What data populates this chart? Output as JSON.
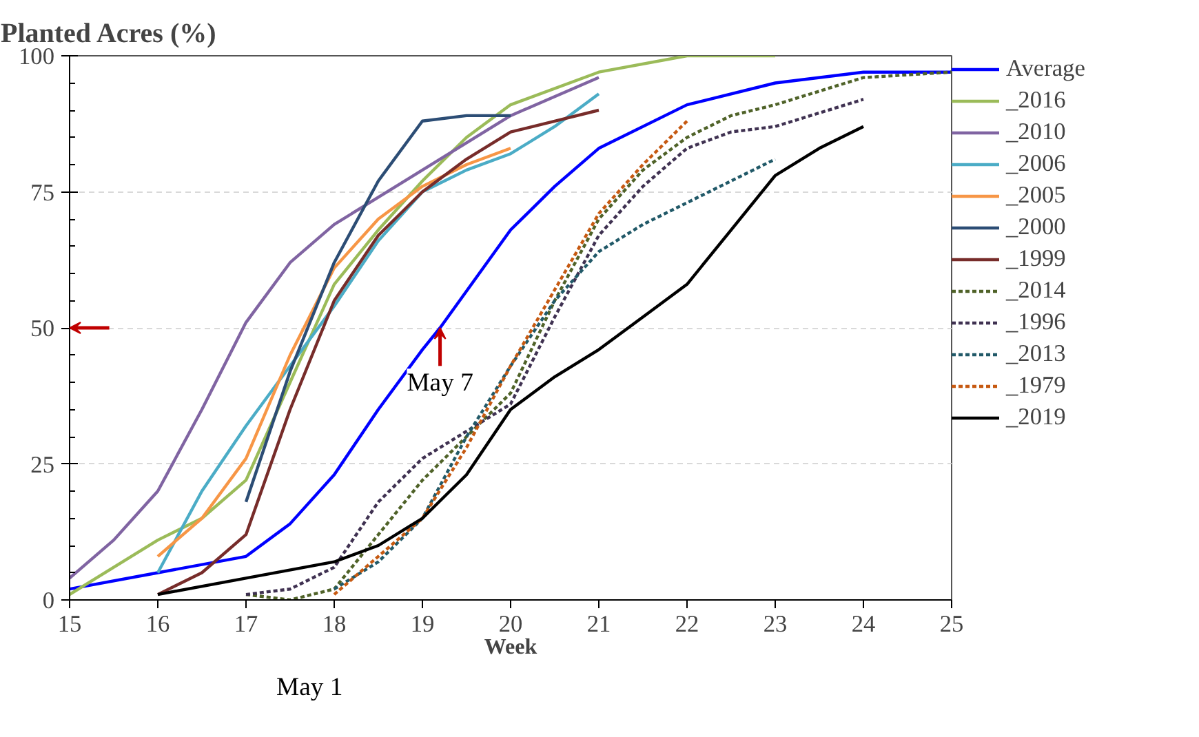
{
  "chart_data": {
    "type": "line",
    "ylabel": "Planted Acres (%)",
    "xlabel": "Week",
    "xlim": [
      15,
      25
    ],
    "xticks": [
      15,
      16,
      17,
      18,
      19,
      20,
      21,
      22,
      23,
      24,
      25
    ],
    "ylim": [
      0,
      100
    ],
    "yticks": [
      0,
      25,
      50,
      75,
      100
    ],
    "grid": "y",
    "legend": "right",
    "marker": "none",
    "annotations": [
      {
        "text": "May 7",
        "x": 19.2,
        "y": 50
      },
      "May 1"
    ],
    "series": [
      {
        "name": "Average",
        "color": "#0000ff",
        "line_style": "solid",
        "x": [
          15,
          16,
          17,
          17.5,
          18,
          18.5,
          19,
          19.2,
          20,
          20.5,
          21,
          22,
          23,
          24,
          25
        ],
        "values": [
          2,
          5,
          8,
          14,
          23,
          35,
          46,
          50,
          68,
          76,
          83,
          91,
          95,
          97,
          97
        ]
      },
      {
        "name": "_2016",
        "color": "#9bbb59",
        "line_style": "solid",
        "x": [
          15,
          16,
          16.5,
          17,
          17.5,
          18,
          18.5,
          19,
          19.5,
          20,
          21,
          22,
          23
        ],
        "values": [
          1,
          11,
          15,
          22,
          40,
          58,
          68,
          77,
          85,
          91,
          97,
          100,
          100
        ]
      },
      {
        "name": "_2010",
        "color": "#8064a2",
        "line_style": "solid",
        "x": [
          15,
          15.5,
          16,
          16.5,
          17,
          17.5,
          18,
          18.5,
          19,
          19.5,
          20,
          21
        ],
        "values": [
          4,
          11,
          20,
          35,
          51,
          62,
          69,
          74,
          79,
          84,
          89,
          96
        ]
      },
      {
        "name": "_2006",
        "color": "#4bacc6",
        "line_style": "solid",
        "x": [
          16,
          16.5,
          17,
          17.5,
          18,
          18.5,
          19,
          19.5,
          20,
          20.5,
          21
        ],
        "values": [
          5,
          20,
          32,
          43,
          54,
          66,
          75,
          79,
          82,
          87,
          93
        ]
      },
      {
        "name": "_2005",
        "color": "#f79646",
        "line_style": "solid",
        "x": [
          16,
          16.5,
          17,
          17.5,
          18,
          18.5,
          19,
          19.5,
          20
        ],
        "values": [
          8,
          15,
          26,
          45,
          61,
          70,
          76,
          80,
          83
        ]
      },
      {
        "name": "_2000",
        "color": "#2c4d75",
        "line_style": "solid",
        "x": [
          17,
          17.5,
          18,
          18.5,
          19,
          19.5,
          20
        ],
        "values": [
          18,
          42,
          62,
          77,
          88,
          89,
          89
        ]
      },
      {
        "name": "_1999",
        "color": "#772c2a",
        "line_style": "solid",
        "x": [
          16,
          16.5,
          17,
          17.5,
          18,
          18.5,
          19,
          19.5,
          20,
          20.5,
          21
        ],
        "values": [
          1,
          5,
          12,
          35,
          55,
          67,
          75,
          81,
          86,
          88,
          90
        ]
      },
      {
        "name": "_2014",
        "color": "#4f6228",
        "line_style": "dashed",
        "x": [
          17,
          17.5,
          18,
          18.5,
          19,
          19.5,
          20,
          20.5,
          21,
          21.5,
          22,
          22.5,
          23,
          24,
          25
        ],
        "values": [
          1,
          0,
          2,
          12,
          22,
          30,
          38,
          55,
          70,
          79,
          85,
          89,
          91,
          96,
          97
        ]
      },
      {
        "name": "_1996",
        "color": "#3f3151",
        "line_style": "dashed",
        "x": [
          17,
          17.5,
          18,
          18.5,
          19,
          19.5,
          20,
          20.5,
          21,
          21.5,
          22,
          22.5,
          23,
          24
        ],
        "values": [
          1,
          2,
          6,
          18,
          26,
          31,
          36,
          52,
          67,
          76,
          83,
          86,
          87,
          92
        ]
      },
      {
        "name": "_2013",
        "color": "#215968",
        "line_style": "dashed",
        "x": [
          18,
          18.5,
          19,
          19.5,
          20,
          20.5,
          21,
          21.5,
          22,
          23
        ],
        "values": [
          2,
          7,
          15,
          30,
          43,
          55,
          64,
          69,
          73,
          81
        ]
      },
      {
        "name": "_1979",
        "color": "#c65911",
        "line_style": "dashed",
        "x": [
          18,
          18.5,
          19,
          19.5,
          20,
          20.5,
          21,
          21.5,
          22
        ],
        "values": [
          1,
          8,
          15,
          28,
          43,
          57,
          71,
          80,
          88
        ]
      },
      {
        "name": "_2019",
        "color": "#000000",
        "line_style": "solid",
        "x": [
          16,
          17,
          18,
          18.5,
          19,
          19.5,
          20,
          20.5,
          21,
          21.5,
          22,
          22.5,
          23,
          23.5,
          24
        ],
        "values": [
          1,
          4,
          7,
          10,
          15,
          23,
          35,
          41,
          46,
          52,
          58,
          68,
          78,
          83,
          87
        ]
      }
    ]
  }
}
